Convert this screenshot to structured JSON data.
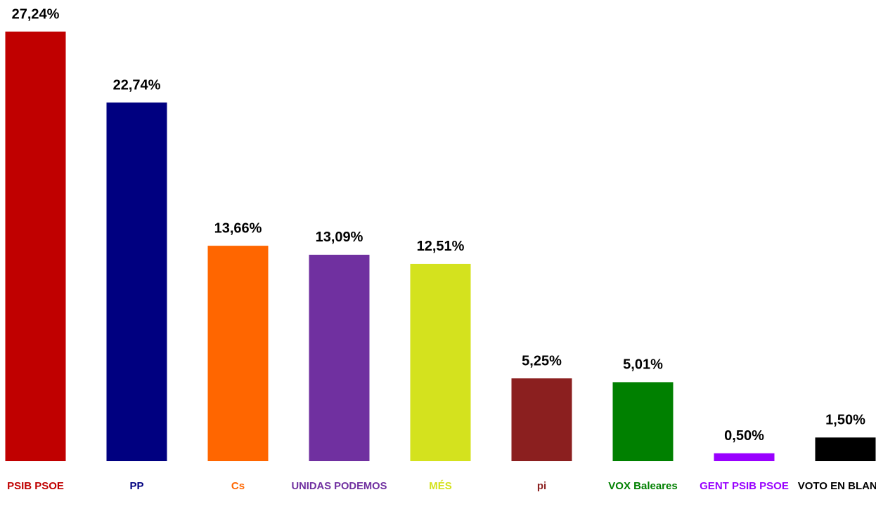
{
  "chart_data": {
    "type": "bar",
    "categories": [
      "PSIB PSOE",
      "PP",
      "Cs",
      "UNIDAS PODEMOS",
      "MÉS",
      "pi",
      "VOX Baleares",
      "GENT PSIB PSOE",
      "VOTO EN BLANCO"
    ],
    "values": [
      27.24,
      22.74,
      13.66,
      13.09,
      12.51,
      5.25,
      5.01,
      0.5,
      1.5
    ],
    "value_labels": [
      "27,24%",
      "22,74%",
      "13,66%",
      "13,09%",
      "12,51%",
      "5,25%",
      "5,01%",
      "0,50%",
      "1,50%"
    ],
    "colors": [
      "#c00000",
      "#000080",
      "#ff6600",
      "#7030a0",
      "#d4e21e",
      "#8b1f1f",
      "#008000",
      "#9900ff",
      "#000000"
    ]
  }
}
